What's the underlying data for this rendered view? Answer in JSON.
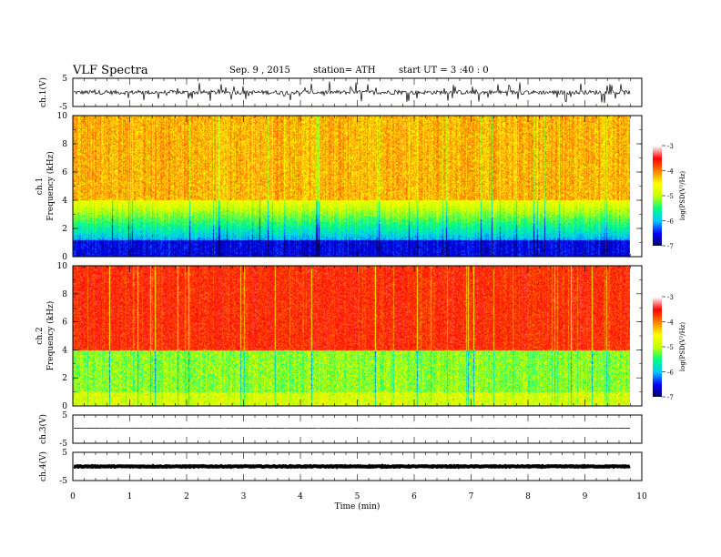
{
  "header": {
    "title": "VLF  Spectra",
    "date": "Sep. 9  , 2015",
    "station": "station= ATH",
    "start": "start  UT  =   3  :40 : 0"
  },
  "colors": {
    "cmap": [
      "#000060",
      "#0000ff",
      "#00c8ff",
      "#00ff80",
      "#c8ff00",
      "#ffff00",
      "#ff8000",
      "#ff0000",
      "#ffffff"
    ],
    "trace": "#000000"
  },
  "chart_data": [
    {
      "type": "line",
      "name": "ch1-waveform",
      "ylabel": "ch.1(V)",
      "ylim": [
        -5,
        5
      ],
      "yticks": [
        "5",
        "-5"
      ],
      "description_values": {
        "mean": 0,
        "noise_amplitude": 1.5
      },
      "xlim": [
        0,
        10
      ]
    },
    {
      "type": "heatmap",
      "name": "ch1-spectrogram",
      "ylabel_top": "ch.1",
      "ylabel": "Frequency (kHz)",
      "yticks": [
        "0",
        "2",
        "4",
        "6",
        "8",
        "10"
      ],
      "ylim": [
        0,
        10
      ],
      "xlim": [
        0,
        9.8
      ],
      "colorbar_label": "log(PSD(V²/Hz)",
      "colorbar_ticks": [
        "-3",
        "-4",
        "-5",
        "-6",
        "-7"
      ],
      "colorbar_range": [
        -7,
        -3
      ]
    },
    {
      "type": "heatmap",
      "name": "ch2-spectrogram",
      "ylabel_top": "ch.2",
      "ylabel": "Frequency (kHz)",
      "yticks": [
        "0",
        "2",
        "4",
        "6",
        "8",
        "10"
      ],
      "ylim": [
        0,
        10
      ],
      "xlim": [
        0,
        9.8
      ],
      "colorbar_label": "log(PSD(V²/Hz)",
      "colorbar_ticks": [
        "-3",
        "-4",
        "-5",
        "-6",
        "-7"
      ],
      "colorbar_range": [
        -7,
        -3
      ]
    },
    {
      "type": "line",
      "name": "ch3-waveform",
      "ylabel": "ch.3(V)",
      "ylim": [
        -5,
        5
      ],
      "yticks": [
        "5",
        "-5"
      ],
      "description_values": {
        "mean": 0.3,
        "noise_amplitude": 0.1
      },
      "xlim": [
        0,
        10
      ]
    },
    {
      "type": "line",
      "name": "ch4-waveform",
      "ylabel": "ch.4(V)",
      "ylim": [
        -5,
        5
      ],
      "yticks": [
        "5",
        "-5"
      ],
      "description_values": {
        "mean": 0,
        "noise_amplitude": 0.3
      },
      "xlim": [
        0,
        10
      ]
    }
  ],
  "xaxis": {
    "label": "Time  (min)",
    "ticks": [
      "0",
      "1",
      "2",
      "3",
      "4",
      "5",
      "6",
      "7",
      "8",
      "9",
      "10"
    ],
    "range": [
      0,
      10
    ]
  }
}
